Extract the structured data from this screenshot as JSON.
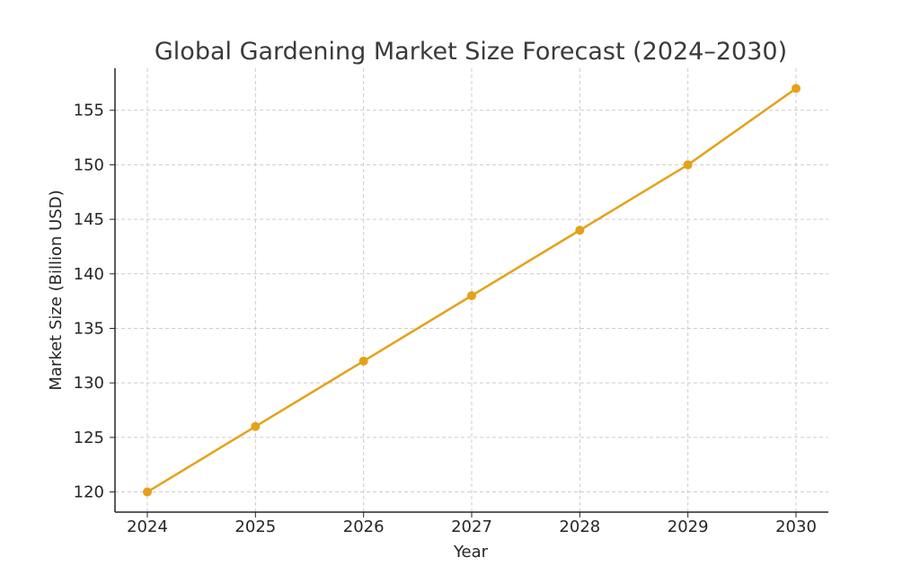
{
  "chart_data": {
    "type": "line",
    "title": "Global Gardening Market Size Forecast (2024–2030)",
    "xlabel": "Year",
    "ylabel": "Market Size (Billion USD)",
    "x": [
      "2024",
      "2025",
      "2026",
      "2027",
      "2028",
      "2029",
      "2030"
    ],
    "series": [
      {
        "values": [
          120,
          126,
          132,
          138,
          144,
          150,
          157
        ]
      }
    ],
    "yticks": [
      "120",
      "125",
      "130",
      "135",
      "140",
      "145",
      "150",
      "155"
    ],
    "ylim": [
      118.15,
      158.85
    ],
    "grid": true,
    "line_color": "#E5A11A",
    "grid_color": "#cccccc",
    "axis_color": "#262626"
  }
}
